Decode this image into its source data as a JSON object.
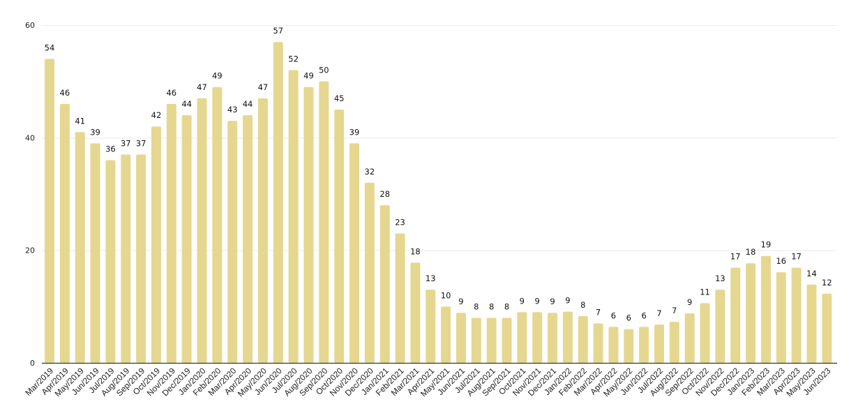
{
  "chart_data": {
    "type": "bar",
    "title": "",
    "xlabel": "",
    "ylabel": "",
    "ylim": [
      0,
      60
    ],
    "yticks": [
      0,
      20,
      40,
      60
    ],
    "grid": true,
    "legend": null,
    "bar_color": "#e5d78f",
    "categories": [
      "Mar/2019",
      "Apr/2019",
      "May/2019",
      "Jun/2019",
      "Jul/2019",
      "Aug/2019",
      "Sep/2019",
      "Oct/2019",
      "Nov/2019",
      "Dec/2019",
      "Jan/2020",
      "Feb/2020",
      "Mar/2020",
      "Apr/2020",
      "May/2020",
      "Jun/2020",
      "Jul/2020",
      "Aug/2020",
      "Sep/2020",
      "Oct/2020",
      "Nov/2020",
      "Dec/2020",
      "Jan/2021",
      "Feb/2021",
      "Mar/2021",
      "Apr/2021",
      "May/2021",
      "Jun/2021",
      "Jul/2021",
      "Aug/2021",
      "Sep/2021",
      "Oct/2021",
      "Nov/2021",
      "Dec/2021",
      "Jan/2022",
      "Feb/2022",
      "Mar/2022",
      "Apr/2022",
      "May/2022",
      "Jun/2022",
      "Jul/2022",
      "Aug/2022",
      "Sep/2022",
      "Oct/2022",
      "Nov/2022",
      "Dec/2022",
      "Jan/2023",
      "Feb/2023",
      "Mar/2023",
      "Apr/2023",
      "May/2023",
      "Jun/2023"
    ],
    "values": [
      54,
      46,
      41,
      39,
      36,
      37,
      37,
      42,
      46,
      44,
      47,
      49,
      43,
      44,
      47,
      57,
      52,
      49,
      50,
      45,
      39,
      32,
      28,
      23,
      18,
      13,
      10,
      9,
      8,
      8,
      8,
      9,
      9,
      9,
      9,
      8,
      7,
      6,
      6,
      6,
      7,
      7,
      9,
      11,
      13,
      17,
      18,
      19,
      16,
      17,
      14,
      12
    ],
    "heights": [
      54,
      46,
      41,
      39,
      36,
      37,
      37,
      42,
      46,
      44,
      47,
      49,
      43,
      44,
      47,
      57,
      52,
      49,
      50,
      45,
      39,
      32,
      28,
      23,
      17.8,
      13,
      10,
      8.9,
      8,
      8,
      8,
      9,
      9,
      8.9,
      9.1,
      8.3,
      7,
      6.4,
      6,
      6.4,
      6.8,
      7.3,
      8.8,
      10.6,
      13,
      16.9,
      17.7,
      19,
      16.1,
      16.9,
      13.9,
      12.3
    ]
  }
}
